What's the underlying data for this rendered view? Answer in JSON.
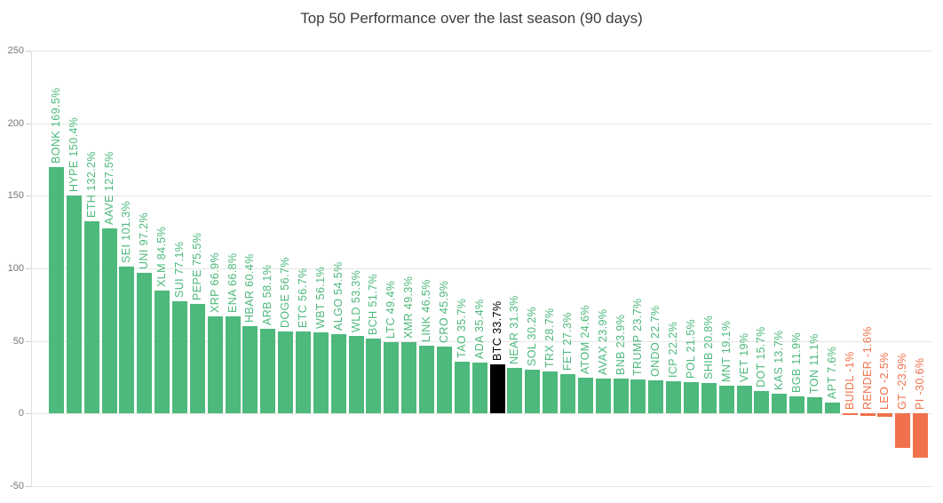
{
  "chart_data": {
    "type": "bar",
    "title": "Top 50 Performance over the last season (90 days)",
    "categories": [
      "BONK",
      "HYPE",
      "ETH",
      "AAVE",
      "SEI",
      "UNI",
      "XLM",
      "SUI",
      "PEPE",
      "XRP",
      "ENA",
      "HBAR",
      "ARB",
      "DOGE",
      "ETC",
      "WBT",
      "ALGO",
      "WLD",
      "BCH",
      "LTC",
      "XMR",
      "LINK",
      "CRO",
      "TAO",
      "ADA",
      "BTC",
      "NEAR",
      "SOL",
      "TRX",
      "FET",
      "ATOM",
      "AVAX",
      "BNB",
      "TRUMP",
      "ONDO",
      "ICP",
      "POL",
      "SHIB",
      "MNT",
      "VET",
      "DOT",
      "KAS",
      "BGB",
      "TON",
      "APT",
      "BUIDL",
      "RENDER",
      "LEO",
      "GT",
      "PI"
    ],
    "values": [
      169.5,
      150.4,
      132.2,
      127.5,
      101.3,
      97.2,
      84.5,
      77.1,
      75.5,
      66.9,
      66.8,
      60.4,
      58.1,
      56.7,
      56.7,
      56.1,
      54.5,
      53.3,
      51.7,
      49.4,
      49.3,
      46.5,
      45.9,
      35.7,
      35.4,
      33.7,
      31.3,
      30.2,
      28.7,
      27.3,
      24.6,
      23.9,
      23.9,
      23.7,
      22.7,
      22.2,
      21.5,
      20.8,
      19.1,
      19,
      15.7,
      13.7,
      11.9,
      11.1,
      7.6,
      -1,
      -1.6,
      -2.5,
      -23.9,
      -30.6
    ],
    "bar_labels": [
      "BONK 169.5%",
      "HYPE 150.4%",
      "ETH 132.2%",
      "AAVE 127.5%",
      "SEI 101.3%",
      "UNI 97.2%",
      "XLM 84.5%",
      "SUI 77.1%",
      "PEPE 75.5%",
      "XRP 66.9%",
      "ENA 66.8%",
      "HBAR 60.4%",
      "ARB 58.1%",
      "DOGE 56.7%",
      "ETC 56.7%",
      "WBT 56.1%",
      "ALGO 54.5%",
      "WLD 53.3%",
      "BCH 51.7%",
      "LTC 49.4%",
      "XMR 49.3%",
      "LINK 46.5%",
      "CRO 45.9%",
      "TAO 35.7%",
      "ADA 35.4%",
      "BTC 33.7%",
      "NEAR 31.3%",
      "SOL 30.2%",
      "TRX 28.7%",
      "FET 27.3%",
      "ATOM 24.6%",
      "AVAX 23.9%",
      "BNB 23.9%",
      "TRUMP 23.7%",
      "ONDO 22.7%",
      "ICP 22.2%",
      "POL 21.5%",
      "SHIB 20.8%",
      "MNT 19.1%",
      "VET 19%",
      "DOT 15.7%",
      "KAS 13.7%",
      "BGB 11.9%",
      "TON 11.1%",
      "APT 7.6%",
      "BUIDL -1%",
      "RENDER -1.6%",
      "LEO -2.5%",
      "GT -23.9%",
      "PI -30.6%"
    ],
    "highlight_category": "BTC",
    "colors": {
      "positive": "#4db97c",
      "negative": "#f0714c",
      "highlight": "#000000",
      "grid": "#e6e6e6",
      "axis": "#e0e0e0",
      "tick": "#cccccc",
      "tick_label": "#757575",
      "title": "#3c3c3c"
    },
    "ylim": [
      -50,
      250
    ],
    "yticks": [
      -50,
      0,
      50,
      100,
      150,
      200,
      250
    ],
    "grid": true,
    "legend": false,
    "xlabel": "",
    "ylabel": ""
  }
}
